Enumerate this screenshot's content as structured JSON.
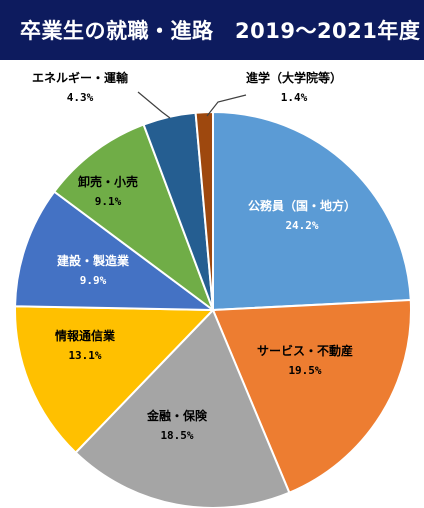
{
  "chart_data": {
    "type": "pie",
    "title": "卒業生の就職・進路　2019～2021年度",
    "start_angle_deg": 0,
    "direction": "clockwise",
    "slices": [
      {
        "label": "公務員（国・地方）",
        "value": 24.2,
        "value_label": "24.2%",
        "color": "#5b9bd5"
      },
      {
        "label": "サービス・不動産",
        "value": 19.5,
        "value_label": "19.5%",
        "color": "#ed7d31"
      },
      {
        "label": "金融・保険",
        "value": 18.5,
        "value_label": "18.5%",
        "color": "#a5a5a5"
      },
      {
        "label": "情報通信業",
        "value": 13.1,
        "value_label": "13.1%",
        "color": "#ffc000"
      },
      {
        "label": "建設・製造業",
        "value": 9.9,
        "value_label": "9.9%",
        "color": "#4472c4"
      },
      {
        "label": "卸売・小売",
        "value": 9.1,
        "value_label": "9.1%",
        "color": "#70ad47"
      },
      {
        "label": "エネルギー・運輸",
        "value": 4.3,
        "value_label": "4.3%",
        "color": "#255e91"
      },
      {
        "label": "進学（大学院等）",
        "value": 1.4,
        "value_label": "1.4%",
        "color": "#9e480e"
      }
    ],
    "title_bar_color": "#0d1b5e"
  }
}
